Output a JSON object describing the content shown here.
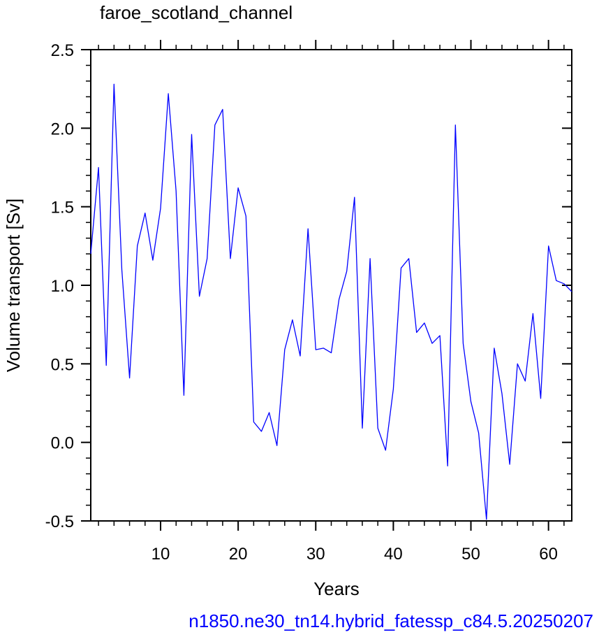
{
  "chart_data": {
    "type": "line",
    "title": "faroe_scotland_channel",
    "xlabel": "Years",
    "ylabel": "Volume transport [Sv]",
    "footer": "n1850.ne30_tn14.hybrid_fatessp_c84.5.20250207",
    "xlim": [
      1,
      63
    ],
    "ylim": [
      -0.5,
      2.5
    ],
    "x_ticks": [
      10,
      20,
      30,
      40,
      50,
      60
    ],
    "x_tick_labels": [
      "10",
      "20",
      "30",
      "40",
      "50",
      "60"
    ],
    "y_ticks": [
      -0.5,
      0.0,
      0.5,
      1.0,
      1.5,
      2.0,
      2.5
    ],
    "y_tick_labels": [
      "-0.5",
      "0.0",
      "0.5",
      "1.0",
      "1.5",
      "2.0",
      "2.5"
    ],
    "x_minor_step": 2,
    "y_minor_step": 0.1,
    "grid": false,
    "colors": {
      "line": "#0000ff",
      "footer": "#0000ff",
      "axes": "#000000"
    },
    "series": [
      {
        "x": [
          1,
          2,
          3,
          4,
          5,
          6,
          7,
          8,
          9,
          10,
          11,
          12,
          13,
          14,
          15,
          16,
          17,
          18,
          19,
          20,
          21,
          22,
          23,
          24,
          25,
          26,
          27,
          28,
          29,
          30,
          31,
          32,
          33,
          34,
          35,
          36,
          37,
          38,
          39,
          40,
          41,
          42,
          43,
          44,
          45,
          46,
          47,
          48,
          49,
          50,
          51,
          52,
          53,
          54,
          55,
          56,
          57,
          58,
          59,
          60,
          61,
          62,
          63
        ],
        "values": [
          1.2,
          1.75,
          0.49,
          2.28,
          1.1,
          0.41,
          1.25,
          1.46,
          1.16,
          1.49,
          2.22,
          1.6,
          0.3,
          1.96,
          0.93,
          1.17,
          2.02,
          2.12,
          1.17,
          1.62,
          1.44,
          0.13,
          0.07,
          0.19,
          -0.02,
          0.59,
          0.78,
          0.55,
          1.36,
          0.59,
          0.6,
          0.57,
          0.91,
          1.09,
          1.56,
          0.09,
          1.17,
          0.09,
          -0.05,
          0.34,
          1.11,
          1.17,
          0.7,
          0.76,
          0.63,
          0.68,
          -0.15,
          2.02,
          0.63,
          0.26,
          0.06,
          -0.49,
          0.6,
          0.31,
          -0.14,
          0.5,
          0.39,
          0.82,
          0.28,
          1.25,
          1.03,
          1.01,
          0.96
        ]
      }
    ]
  }
}
